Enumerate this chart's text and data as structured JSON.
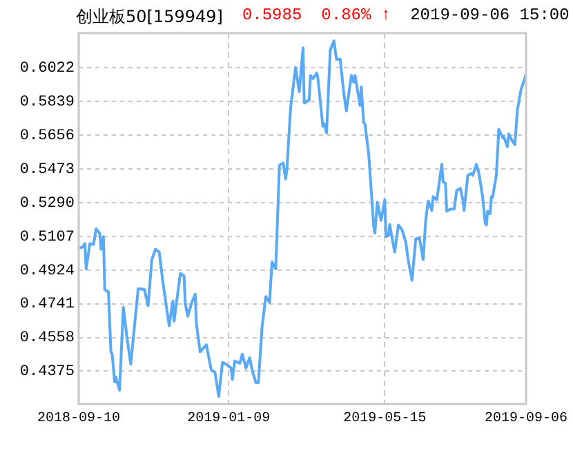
{
  "chart_data": {
    "type": "line",
    "title": "创业板50[159949]",
    "annotations": [
      "0.5985",
      "0.86% ↑",
      "2019-09-06 15:00"
    ],
    "x": [
      "2018-09-10",
      "2018-09-13",
      "2018-09-15",
      "2018-09-16",
      "2018-09-19",
      "2018-09-22",
      "2018-09-24",
      "2018-09-27",
      "2018-09-28",
      "2018-09-30",
      "2018-10-01",
      "2018-10-04",
      "2018-10-06",
      "2018-10-07",
      "2018-10-09",
      "2018-10-10",
      "2018-10-13",
      "2018-10-16",
      "2018-10-19",
      "2018-10-22",
      "2018-10-28",
      "2018-11-02",
      "2018-11-05",
      "2018-11-08",
      "2018-11-11",
      "2018-11-14",
      "2018-11-17",
      "2018-11-22",
      "2018-11-25",
      "2018-11-26",
      "2018-12-01",
      "2018-12-04",
      "2018-12-05",
      "2018-12-07",
      "2018-12-10",
      "2018-12-13",
      "2018-12-14",
      "2018-12-17",
      "2018-12-22",
      "2018-12-26",
      "2018-12-29",
      "2019-01-01",
      "2019-01-04",
      "2019-01-07",
      "2019-01-11",
      "2019-01-12",
      "2019-01-14",
      "2019-01-18",
      "2019-01-20",
      "2019-01-23",
      "2019-01-26",
      "2019-01-28",
      "2019-01-31",
      "2019-02-02",
      "2019-02-05",
      "2019-02-08",
      "2019-02-11",
      "2019-02-13",
      "2019-02-16",
      "2019-02-19",
      "2019-02-22",
      "2019-02-24",
      "2019-02-25",
      "2019-02-28",
      "2019-03-04",
      "2019-03-07",
      "2019-03-10",
      "2019-03-11",
      "2019-03-15",
      "2019-03-16",
      "2019-03-18",
      "2019-03-21",
      "2019-03-22",
      "2019-03-26",
      "2019-03-27",
      "2019-03-29",
      "2019-04-01",
      "2019-04-04",
      "2019-04-06",
      "2019-04-09",
      "2019-04-12",
      "2019-04-14",
      "2019-04-18",
      "2019-04-20",
      "2019-04-21",
      "2019-04-25",
      "2019-04-26",
      "2019-04-28",
      "2019-04-29",
      "2019-05-02",
      "2019-05-06",
      "2019-05-07",
      "2019-05-09",
      "2019-05-12",
      "2019-05-15",
      "2019-05-16",
      "2019-05-18",
      "2019-05-19",
      "2019-05-21",
      "2019-05-23",
      "2019-05-26",
      "2019-05-29",
      "2019-06-01",
      "2019-06-03",
      "2019-06-06",
      "2019-06-09",
      "2019-06-12",
      "2019-06-15",
      "2019-06-17",
      "2019-06-19",
      "2019-06-22",
      "2019-06-23",
      "2019-06-26",
      "2019-06-30",
      "2019-07-01",
      "2019-07-03",
      "2019-07-04",
      "2019-07-07",
      "2019-07-10",
      "2019-07-12",
      "2019-07-15",
      "2019-07-17",
      "2019-07-18",
      "2019-07-21",
      "2019-07-24",
      "2019-07-25",
      "2019-07-28",
      "2019-07-30",
      "2019-08-02",
      "2019-08-04",
      "2019-08-05",
      "2019-08-06",
      "2019-08-08",
      "2019-08-09",
      "2019-08-10",
      "2019-08-13",
      "2019-08-15",
      "2019-08-18",
      "2019-08-19",
      "2019-08-22",
      "2019-08-23",
      "2019-08-26",
      "2019-08-28",
      "2019-08-30",
      "2019-09-02",
      "2019-09-06"
    ],
    "series": [
      {
        "color": "#5aa9f5",
        "values": [
          0.5043,
          0.5048,
          0.5067,
          0.493,
          0.5067,
          0.5063,
          0.5148,
          0.5123,
          0.5037,
          0.5105,
          0.4818,
          0.4805,
          0.448,
          0.4467,
          0.4317,
          0.4343,
          0.4272,
          0.4722,
          0.4555,
          0.4413,
          0.4823,
          0.4818,
          0.473,
          0.498,
          0.5037,
          0.5022,
          0.4855,
          0.4622,
          0.4755,
          0.4647,
          0.4905,
          0.4893,
          0.4743,
          0.4673,
          0.4743,
          0.4793,
          0.463,
          0.448,
          0.4518,
          0.438,
          0.4368,
          0.4238,
          0.4422,
          0.4413,
          0.4392,
          0.433,
          0.443,
          0.4418,
          0.4467,
          0.4392,
          0.4448,
          0.438,
          0.4313,
          0.4313,
          0.4617,
          0.478,
          0.4748,
          0.4968,
          0.493,
          0.5493,
          0.5505,
          0.5418,
          0.5468,
          0.5805,
          0.6023,
          0.5892,
          0.613,
          0.583,
          0.5847,
          0.598,
          0.5963,
          0.5993,
          0.5967,
          0.5705,
          0.5718,
          0.5668,
          0.6117,
          0.6168,
          0.6068,
          0.6068,
          0.588,
          0.5787,
          0.598,
          0.5943,
          0.598,
          0.5817,
          0.5918,
          0.5723,
          0.5718,
          0.5555,
          0.5168,
          0.5125,
          0.5292,
          0.5193,
          0.5305,
          0.5105,
          0.5112,
          0.5172,
          0.5093,
          0.5022,
          0.5168,
          0.5142,
          0.5073,
          0.4973,
          0.4868,
          0.5093,
          0.5097,
          0.498,
          0.5193,
          0.5298,
          0.5247,
          0.5322,
          0.5305,
          0.5498,
          0.5405,
          0.5393,
          0.5243,
          0.5255,
          0.5255,
          0.5355,
          0.5367,
          0.5305,
          0.5247,
          0.5438,
          0.5448,
          0.5438,
          0.5498,
          0.5448,
          0.5318,
          0.518,
          0.5168,
          0.5243,
          0.523,
          0.5322,
          0.5318,
          0.5438,
          0.5688,
          0.5643,
          0.5648,
          0.5593,
          0.5663,
          0.5623,
          0.5605,
          0.5793,
          0.5905,
          0.5985
        ]
      }
    ],
    "xlim": [
      "2018-09-10",
      "2019-09-06"
    ],
    "xticks": [
      "2018-09-10",
      "2019-01-09",
      "2019-05-15",
      "2019-09-06"
    ],
    "ylim": [
      0.4197,
      0.621
    ],
    "yticks": [
      0.4375,
      0.4558,
      0.4741,
      0.4924,
      0.5107,
      {
        "value": 0.529,
        "label": "0.5290"
      },
      0.5473,
      0.5656,
      0.5839,
      0.6022
    ],
    "grid": true,
    "legend": false,
    "marker": "none",
    "line_style": "solid"
  }
}
